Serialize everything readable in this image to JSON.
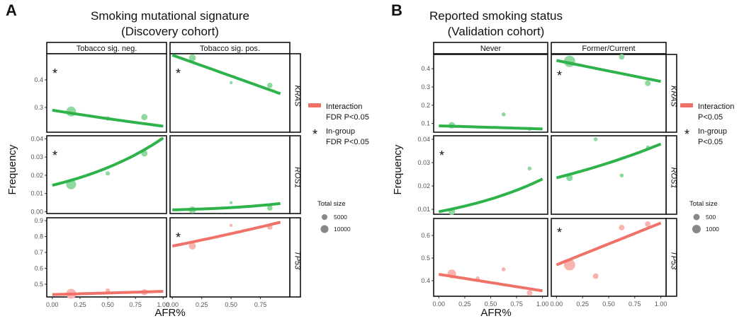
{
  "colors": {
    "green_line": "#2db34a",
    "green_point": "#8fd9a0",
    "red_line": "#f07167",
    "red_point": "#f9b4b0"
  },
  "chart_data": [
    {
      "type": "scatter",
      "panel_label": "A",
      "title": [
        "Smoking mutational signature",
        "(Discovery cohort)"
      ],
      "xlabel": "AFR%",
      "ylabel": "Frequency",
      "columns": [
        "Tobacco sig. neg.",
        "Tobacco sig. pos."
      ],
      "rows": [
        {
          "gene": "KRAS",
          "ylim": [
            0.21,
            0.495
          ],
          "yticks": [
            {
              "v": 0.3,
              "t": "0.3"
            },
            {
              "v": 0.4,
              "t": "0.4"
            }
          ],
          "color": "green"
        },
        {
          "gene": "ROS1",
          "ylim": [
            -0.001,
            0.0417
          ],
          "yticks": [
            {
              "v": 0,
              "t": "0.00"
            },
            {
              "v": 0.01,
              "t": "0.01"
            },
            {
              "v": 0.02,
              "t": "0.02"
            },
            {
              "v": 0.03,
              "t": "0.03"
            },
            {
              "v": 0.04,
              "t": "0.04"
            }
          ],
          "color": "green"
        },
        {
          "gene": "TP53",
          "ylim": [
            0.42,
            0.918
          ],
          "yticks": [
            {
              "v": 0.5,
              "t": "0.5"
            },
            {
              "v": 0.6,
              "t": "0.6"
            },
            {
              "v": 0.7,
              "t": "0.7"
            },
            {
              "v": 0.8,
              "t": "0.8"
            },
            {
              "v": 0.9,
              "t": "0.9"
            }
          ],
          "color": "red"
        }
      ],
      "xlims": [
        [
          -0.05,
          1.03
        ],
        [
          -0.02,
          1.0
        ]
      ],
      "xticks": [
        [
          "0.00",
          "0.25",
          "0.50",
          "0.75",
          "1.00"
        ],
        [
          "0.00",
          "0.25",
          "0.50",
          "0.75"
        ]
      ],
      "cells": [
        [
          {
            "star": true,
            "line": {
              "x": [
                0,
                1
              ],
              "y": [
                0.29,
                0.232
              ],
              "scale": "log"
            },
            "points": [
              [
                0.17,
                0.285,
                10000
              ],
              [
                0.5,
                0.26,
                2000
              ],
              [
                0.83,
                0.265,
                4000
              ]
            ]
          },
          {
            "star": true,
            "line": {
              "x": [
                0,
                0.92
              ],
              "y": [
                0.49,
                0.35
              ],
              "scale": "linear"
            },
            "points": [
              [
                0.17,
                0.48,
                5000
              ],
              [
                0.5,
                0.39,
                800
              ],
              [
                0.83,
                0.38,
                3000
              ]
            ]
          }
        ],
        [
          {
            "star": true,
            "line": {
              "x": [
                0,
                1
              ],
              "y": [
                0.0145,
                0.0405
              ],
              "scale": "log"
            },
            "points": [
              [
                0.17,
                0.015,
                10000
              ],
              [
                0.5,
                0.021,
                2000
              ],
              [
                0.83,
                0.032,
                4000
              ]
            ]
          },
          {
            "star": false,
            "line": {
              "x": [
                0,
                0.92
              ],
              "y": [
                0.001,
                0.0045
              ],
              "scale": "log"
            },
            "points": [
              [
                0.17,
                0.001,
                5000
              ],
              [
                0.5,
                0.005,
                800
              ],
              [
                0.83,
                0.002,
                3000
              ]
            ]
          }
        ],
        [
          {
            "star": false,
            "line": {
              "x": [
                0,
                1
              ],
              "y": [
                0.435,
                0.455
              ],
              "scale": "linear"
            },
            "points": [
              [
                0.17,
                0.44,
                10000
              ],
              [
                0.5,
                0.46,
                2000
              ],
              [
                0.83,
                0.45,
                4000
              ]
            ]
          },
          {
            "star": true,
            "line": {
              "x": [
                0,
                0.92
              ],
              "y": [
                0.74,
                0.89
              ],
              "scale": "log"
            },
            "points": [
              [
                0.17,
                0.74,
                5000
              ],
              [
                0.5,
                0.87,
                800
              ],
              [
                0.83,
                0.86,
                3000
              ]
            ]
          }
        ]
      ],
      "legend": {
        "line_label": [
          "Interaction",
          "FDR P<0.05"
        ],
        "star_label": [
          "In-group",
          "FDR P<0.05"
        ],
        "size_title": "Total size",
        "sizes": [
          {
            "v": 5000,
            "t": "5000"
          },
          {
            "v": 10000,
            "t": "10000"
          }
        ]
      }
    },
    {
      "type": "scatter",
      "panel_label": "B",
      "title": [
        "Reported smoking status",
        "(Validation cohort)"
      ],
      "xlabel": "AFR%",
      "ylabel": "Frequency",
      "columns": [
        "Never",
        "Former/Current"
      ],
      "rows": [
        {
          "gene": "KRAS",
          "ylim": [
            0.052,
            0.478
          ],
          "yticks": [
            {
              "v": 0.1,
              "t": "0.1"
            },
            {
              "v": 0.2,
              "t": "0.2"
            },
            {
              "v": 0.3,
              "t": "0.3"
            },
            {
              "v": 0.4,
              "t": "0.4"
            }
          ],
          "color": "green"
        },
        {
          "gene": "ROS1",
          "ylim": [
            0.0079,
            0.0415
          ],
          "yticks": [
            {
              "v": 0.01,
              "t": "0.01"
            },
            {
              "v": 0.02,
              "t": "0.02"
            },
            {
              "v": 0.03,
              "t": "0.03"
            },
            {
              "v": 0.04,
              "t": "0.04"
            }
          ],
          "color": "green"
        },
        {
          "gene": "TP53",
          "ylim": [
            0.331,
            0.675
          ],
          "yticks": [
            {
              "v": 0.4,
              "t": "0.4"
            },
            {
              "v": 0.5,
              "t": "0.5"
            },
            {
              "v": 0.6,
              "t": "0.6"
            }
          ],
          "color": "red"
        }
      ],
      "xlims": [
        [
          -0.05,
          1.05
        ],
        [
          -0.05,
          1.05
        ]
      ],
      "xticks": [
        [
          "0.00",
          "0.25",
          "0.50",
          "0.75",
          "1.00"
        ],
        [
          "0.00",
          "0.25",
          "0.50",
          "0.75",
          "1.00"
        ]
      ],
      "cells": [
        [
          {
            "star": false,
            "line": {
              "x": [
                0,
                1
              ],
              "y": [
                0.087,
                0.07
              ],
              "scale": "linear"
            },
            "points": [
              [
                0.125,
                0.09,
                400
              ],
              [
                0.625,
                0.15,
                150
              ],
              [
                0.875,
                0.07,
                150
              ]
            ]
          },
          {
            "star": true,
            "line": {
              "x": [
                0,
                1
              ],
              "y": [
                0.445,
                0.33
              ],
              "scale": "linear"
            },
            "points": [
              [
                0.125,
                0.44,
                1200
              ],
              [
                0.625,
                0.465,
                300
              ],
              [
                0.875,
                0.32,
                300
              ]
            ]
          }
        ],
        [
          {
            "star": true,
            "line": {
              "x": [
                0,
                1
              ],
              "y": [
                0.009,
                0.023
              ],
              "scale": "log"
            },
            "points": [
              [
                0.125,
                0.009,
                400
              ],
              [
                0.875,
                0.0275,
                150
              ]
            ]
          },
          {
            "star": false,
            "line": {
              "x": [
                0,
                1
              ],
              "y": [
                0.0235,
                0.038
              ],
              "scale": "log"
            },
            "points": [
              [
                0.125,
                0.0235,
                400
              ],
              [
                0.375,
                0.04,
                150
              ],
              [
                0.625,
                0.0245,
                150
              ],
              [
                0.875,
                0.0365,
                150
              ]
            ]
          }
        ],
        [
          {
            "star": false,
            "line": {
              "x": [
                0,
                1
              ],
              "y": [
                0.428,
                0.355
              ],
              "scale": "linear"
            },
            "points": [
              [
                0.125,
                0.43,
                700
              ],
              [
                0.375,
                0.41,
                150
              ],
              [
                0.625,
                0.45,
                150
              ],
              [
                0.875,
                0.345,
                300
              ]
            ]
          },
          {
            "star": true,
            "line": {
              "x": [
                0,
                1
              ],
              "y": [
                0.47,
                0.655
              ],
              "scale": "linear"
            },
            "points": [
              [
                0.125,
                0.47,
                1200
              ],
              [
                0.375,
                0.42,
                300
              ],
              [
                0.625,
                0.635,
                300
              ],
              [
                0.875,
                0.65,
                300
              ]
            ]
          }
        ]
      ],
      "legend": {
        "line_label": [
          "Interaction",
          "P<0.05"
        ],
        "star_label": [
          "In-group",
          "P<0.05"
        ],
        "size_title": "Total size",
        "sizes": [
          {
            "v": 500,
            "t": "500"
          },
          {
            "v": 1000,
            "t": "1000"
          }
        ]
      }
    }
  ]
}
